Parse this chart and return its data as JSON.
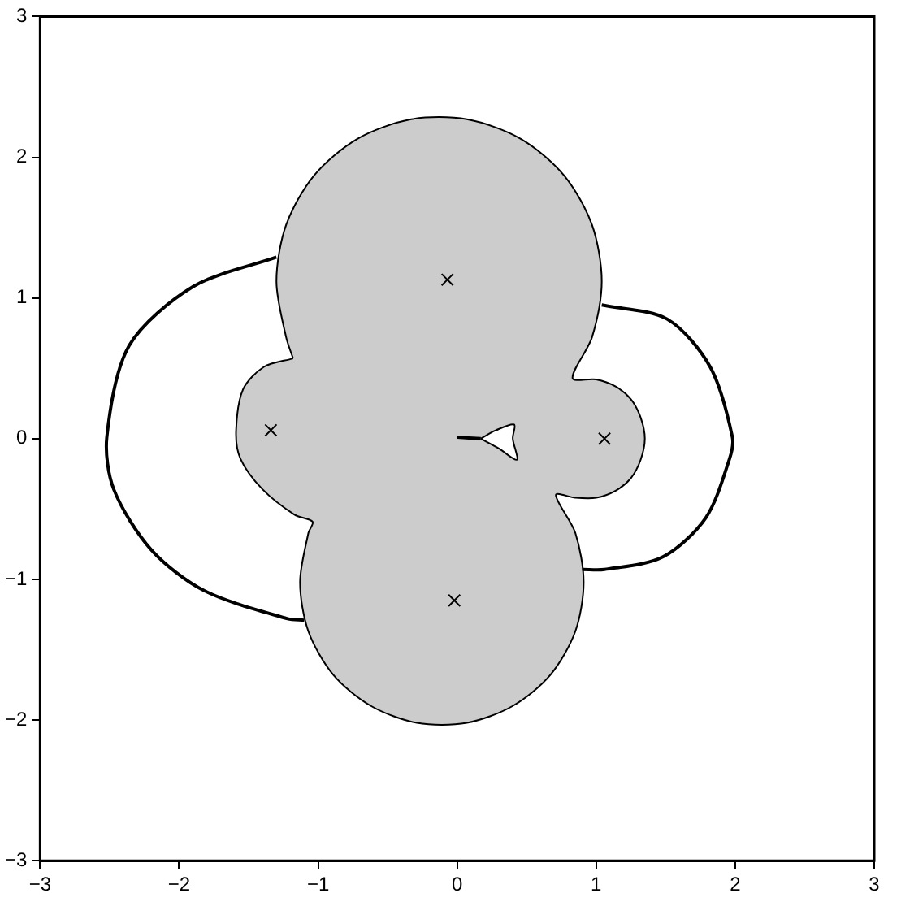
{
  "chart_data": {
    "type": "line",
    "xlim": [
      -3,
      3
    ],
    "ylim": [
      -3,
      3
    ],
    "xticks": [
      {
        "value": -3,
        "label": "−3"
      },
      {
        "value": -2,
        "label": "−2"
      },
      {
        "value": -1,
        "label": "−1"
      },
      0,
      1,
      2,
      3
    ],
    "yticks": [
      {
        "value": -3,
        "label": "−3"
      },
      {
        "value": -2,
        "label": "−2"
      },
      {
        "value": -1,
        "label": "−1"
      },
      0,
      1,
      2,
      3
    ],
    "series": [
      {
        "type": "area",
        "color": "#cccccc",
        "x": [
          -1.18,
          -1.23,
          -1.3,
          -1.23,
          -1.03,
          -0.72,
          -0.33,
          0.07,
          0.46,
          0.77,
          0.97,
          1.04,
          0.97,
          0.83,
          1.0,
          1.14,
          1.25,
          1.32,
          1.35,
          1.32,
          1.25,
          1.14,
          1.0,
          0.85,
          0.71,
          0.85,
          0.91,
          0.85,
          0.67,
          0.4,
          0.07,
          -0.29,
          -0.62,
          -0.89,
          -1.07,
          -1.13,
          -1.07,
          -1.04,
          -1.17,
          -1.4,
          -1.56,
          -1.59,
          -1.54,
          -1.39,
          -1.18
        ],
        "values": [
          0.57,
          0.72,
          1.12,
          1.52,
          1.87,
          2.13,
          2.27,
          2.27,
          2.13,
          1.87,
          1.52,
          1.12,
          0.72,
          0.43,
          0.42,
          0.37,
          0.28,
          0.15,
          0,
          -0.15,
          -0.28,
          -0.37,
          -0.42,
          -0.42,
          -0.4,
          -0.67,
          -1.02,
          -1.37,
          -1.68,
          -1.9,
          -2.02,
          -2.02,
          -1.9,
          -1.68,
          -1.37,
          -1.02,
          -0.67,
          -0.59,
          -0.54,
          -0.36,
          -0.14,
          0.06,
          0.35,
          0.51,
          0.57
        ]
      },
      {
        "type": "area",
        "color": "#ffffff",
        "x": [
          0.17,
          0.28,
          0.41,
          0.4,
          0.43,
          0.3,
          0.17
        ],
        "values": [
          0,
          0.06,
          0.1,
          0,
          -0.15,
          -0.07,
          0
        ]
      },
      {
        "type": "line",
        "color": "#000000",
        "x": [
          0,
          0.17
        ],
        "values": [
          0.01,
          0
        ]
      },
      {
        "type": "line",
        "color": "#000000",
        "x": [
          -1.3,
          -1.9,
          -2.36,
          -2.52,
          -2.47,
          -2.2,
          -1.82,
          -1.22,
          -1.1
        ],
        "values": [
          1.29,
          1.08,
          0.66,
          0.01,
          -0.36,
          -0.79,
          -1.08,
          -1.28,
          -1.29
        ]
      },
      {
        "type": "line",
        "color": "#000000",
        "x": [
          1.04,
          1.51,
          1.82,
          1.98,
          1.96,
          1.79,
          1.48,
          1.06,
          0.9
        ],
        "values": [
          0.95,
          0.85,
          0.51,
          0.01,
          -0.14,
          -0.56,
          -0.84,
          -0.93,
          -0.93
        ]
      },
      {
        "type": "scatter",
        "color": "#000000",
        "marker": "cross",
        "x": [
          -0.07,
          -1.34,
          1.06,
          -0.02
        ],
        "values": [
          1.13,
          0.06,
          0,
          -1.15
        ]
      }
    ]
  }
}
